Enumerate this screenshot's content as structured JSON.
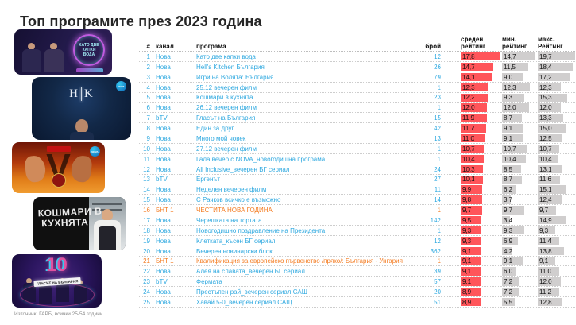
{
  "title": "Топ програмите през 2023 година",
  "source_note": "Източник: ГАРБ, всички 25-54 години",
  "colors": {
    "accent_cyan": "#2FA9E0",
    "accent_orange": "#F47B20",
    "bar_red": "#FF555A",
    "bar_gray": "#D0CECE"
  },
  "header": {
    "rank": "#",
    "channel": "канал",
    "program": "програма",
    "count": "брой",
    "avg_line1": "среден",
    "avg_line2": "рейтинг",
    "min_line1": "мин.",
    "min_line2": "рейтинг",
    "max_line1": "макс.",
    "max_line2": "Рейтинг"
  },
  "thumbnails": [
    {
      "name": "kato-dve-kapki-voda",
      "label": "КАТО ДВЕ КАПКИ ВОДА"
    },
    {
      "name": "hells-kitchen-bulgaria",
      "label_left": "H",
      "label_right": "K",
      "badge": "NOVA"
    },
    {
      "name": "igri-na-volyata",
      "label": "V",
      "badge": "NOVA"
    },
    {
      "name": "koshmari-v-kuhnyata",
      "label_line1": "КОШМАРИ В",
      "label_line2": "КУХНЯТА"
    },
    {
      "name": "glasat-na-balgaria-10",
      "label": "10",
      "logo": "ГЛАСЪТ НА БЪЛГАРИЯ"
    }
  ],
  "chart_data": {
    "type": "table",
    "title": "Топ програмите през 2023 година",
    "columns": [
      "#",
      "канал",
      "програма",
      "брой",
      "среден рейтинг",
      "мин. рейтинг",
      "макс. Рейтинг"
    ],
    "decimal_separator": ",",
    "bar_scale_max": {
      "avg": 17.8,
      "min": 14.7,
      "max": 19.7
    },
    "rows": [
      {
        "rank": 1,
        "channel": "Нова",
        "program": "Като две капки вода",
        "count": 12,
        "avg": 17.8,
        "min": 14.7,
        "max": 19.7
      },
      {
        "rank": 2,
        "channel": "Нова",
        "program": "Hell's Kitchen България",
        "count": 26,
        "avg": 14.7,
        "min": 11.5,
        "max": 18.4
      },
      {
        "rank": 3,
        "channel": "Нова",
        "program": "Игри на Волята: България",
        "count": 79,
        "avg": 14.1,
        "min": 9.0,
        "max": 17.2
      },
      {
        "rank": 4,
        "channel": "Нова",
        "program": "25.12 вечерен филм",
        "count": 1,
        "avg": 12.3,
        "min": 12.3,
        "max": 12.3
      },
      {
        "rank": 5,
        "channel": "Нова",
        "program": "Кошмари в кухнята",
        "count": 23,
        "avg": 12.2,
        "min": 9.3,
        "max": 15.3
      },
      {
        "rank": 6,
        "channel": "Нова",
        "program": "26.12 вечерен филм",
        "count": 1,
        "avg": 12.0,
        "min": 12.0,
        "max": 12.0
      },
      {
        "rank": 7,
        "channel": "bTV",
        "program": "Гласът на България",
        "count": 15,
        "avg": 11.9,
        "min": 8.7,
        "max": 13.3
      },
      {
        "rank": 8,
        "channel": "Нова",
        "program": "Един за друг",
        "count": 42,
        "avg": 11.7,
        "min": 9.1,
        "max": 15.0
      },
      {
        "rank": 9,
        "channel": "Нова",
        "program": "Много мой човек",
        "count": 13,
        "avg": 11.0,
        "min": 9.1,
        "max": 12.5
      },
      {
        "rank": 10,
        "channel": "Нова",
        "program": "27.12 вечерен филм",
        "count": 1,
        "avg": 10.7,
        "min": 10.7,
        "max": 10.7
      },
      {
        "rank": 11,
        "channel": "Нова",
        "program": "Гала вечер с NOVA_новогодишна програма",
        "count": 1,
        "avg": 10.4,
        "min": 10.4,
        "max": 10.4
      },
      {
        "rank": 12,
        "channel": "Нова",
        "program": "All Inclusive_вечерен БГ сериал",
        "count": 24,
        "avg": 10.3,
        "min": 8.5,
        "max": 13.1
      },
      {
        "rank": 13,
        "channel": "bTV",
        "program": "Ергенът",
        "count": 27,
        "avg": 10.1,
        "min": 8.7,
        "max": 11.6
      },
      {
        "rank": 14,
        "channel": "Нова",
        "program": "Неделен вечерен филм",
        "count": 11,
        "avg": 9.9,
        "min": 6.2,
        "max": 15.1
      },
      {
        "rank": 15,
        "channel": "Нова",
        "program": "С Рачков всичко е възможно",
        "count": 14,
        "avg": 9.8,
        "min": 3.7,
        "max": 12.4
      },
      {
        "rank": 16,
        "channel": "БНТ 1",
        "program": "ЧЕСТИТА НОВА ГОДИНА",
        "count": 1,
        "avg": 9.7,
        "min": 9.7,
        "max": 9.7,
        "highlight": true
      },
      {
        "rank": 17,
        "channel": "Нова",
        "program": "Черешката на тортата",
        "count": 142,
        "avg": 9.5,
        "min": 3.4,
        "max": 14.9
      },
      {
        "rank": 18,
        "channel": "Нова",
        "program": "Новогодишно поздравление на Президента",
        "count": 1,
        "avg": 9.3,
        "min": 9.3,
        "max": 9.3
      },
      {
        "rank": 19,
        "channel": "Нова",
        "program": "Клетката_късен БГ сериал",
        "count": 12,
        "avg": 9.3,
        "min": 6.9,
        "max": 11.4
      },
      {
        "rank": 20,
        "channel": "Нова",
        "program": "Вечерен новинарски блок",
        "count": 362,
        "avg": 9.1,
        "min": 4.2,
        "max": 13.8
      },
      {
        "rank": 21,
        "channel": "БНТ 1",
        "program": "Квалификация за европейско първенство /пряко/: България - Унгария",
        "count": 1,
        "avg": 9.1,
        "min": 9.1,
        "max": 9.1,
        "highlight": true
      },
      {
        "rank": 22,
        "channel": "Нова",
        "program": "Алея на славата_вечерен БГ сериал",
        "count": 39,
        "avg": 9.1,
        "min": 6.0,
        "max": 11.0
      },
      {
        "rank": 23,
        "channel": "bTV",
        "program": "Фермата",
        "count": 57,
        "avg": 9.1,
        "min": 7.2,
        "max": 12.0
      },
      {
        "rank": 24,
        "channel": "Нова",
        "program": "Престъпен рай_вечерен сериал САЩ",
        "count": 20,
        "avg": 8.9,
        "min": 7.2,
        "max": 11.2
      },
      {
        "rank": 25,
        "channel": "Нова",
        "program": "Хавай 5-0_вечерен сериал САЩ",
        "count": 51,
        "avg": 8.9,
        "min": 5.5,
        "max": 12.8
      }
    ]
  }
}
